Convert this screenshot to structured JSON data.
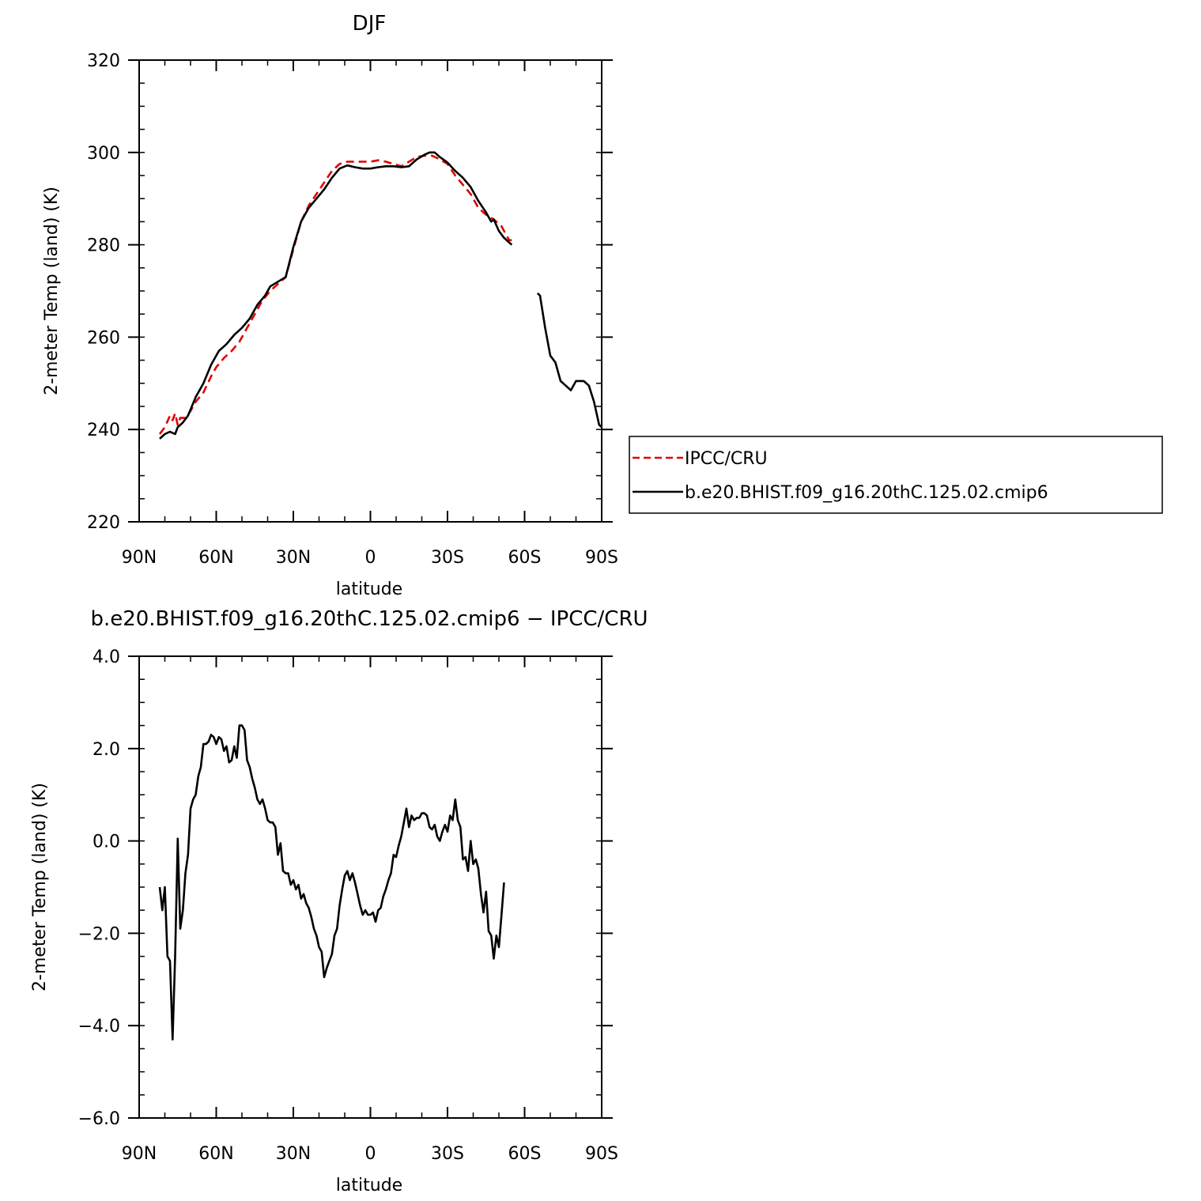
{
  "chart_data": [
    {
      "type": "line",
      "title": "DJF",
      "xlabel": "latitude",
      "ylabel": "2-meter Temp (land) (K)",
      "xlim": [
        -90,
        90
      ],
      "ylim": [
        220,
        320
      ],
      "x_ticks": [
        "90N",
        "60N",
        "30N",
        "0",
        "30S",
        "60S",
        "90S"
      ],
      "y_ticks": [
        "220",
        "240",
        "260",
        "280",
        "300",
        "320"
      ],
      "legend_position": "right",
      "series": [
        {
          "name": "IPCC/CRU",
          "color": "#e00000",
          "dash": "dashed",
          "points": [
            [
              -82,
              239
            ],
            [
              -80,
              240.5
            ],
            [
              -78,
              243
            ],
            [
              -77,
              242
            ],
            [
              -76,
              243.5
            ],
            [
              -75,
              241
            ],
            [
              -74,
              242.5
            ],
            [
              -72,
              242.5
            ],
            [
              -70,
              244
            ],
            [
              -68,
              246
            ],
            [
              -65,
              248
            ],
            [
              -62,
              251.5
            ],
            [
              -60,
              253.5
            ],
            [
              -57,
              255.5
            ],
            [
              -54,
              257
            ],
            [
              -51,
              259
            ],
            [
              -48,
              262
            ],
            [
              -45,
              265
            ],
            [
              -42,
              268
            ],
            [
              -39,
              270
            ],
            [
              -36,
              271.5
            ],
            [
              -33,
              273
            ],
            [
              -30,
              279
            ],
            [
              -27,
              285
            ],
            [
              -24,
              288.5
            ],
            [
              -21,
              291
            ],
            [
              -18,
              293.5
            ],
            [
              -15,
              296
            ],
            [
              -12,
              297.5
            ],
            [
              -9,
              298
            ],
            [
              -6,
              298
            ],
            [
              -3,
              298
            ],
            [
              0,
              298
            ],
            [
              3,
              298.3
            ],
            [
              6,
              298
            ],
            [
              9,
              297.5
            ],
            [
              12,
              297
            ],
            [
              15,
              298
            ],
            [
              18,
              299
            ],
            [
              21,
              299.3
            ],
            [
              24,
              299.3
            ],
            [
              27,
              298.5
            ],
            [
              30,
              297.5
            ],
            [
              33,
              295
            ],
            [
              36,
              293
            ],
            [
              39,
              291
            ],
            [
              42,
              288
            ],
            [
              45,
              286.5
            ],
            [
              48,
              285.5
            ],
            [
              51,
              284
            ],
            [
              54,
              281
            ],
            [
              55,
              281
            ]
          ]
        },
        {
          "name": "b.e20.BHIST.f09_g16.20thC.125.02.cmip6",
          "color": "#000000",
          "dash": "solid",
          "points": [
            [
              -82,
              238
            ],
            [
              -80,
              239
            ],
            [
              -78,
              239.5
            ],
            [
              -76,
              239
            ],
            [
              -75,
              240.5
            ],
            [
              -73,
              241.5
            ],
            [
              -71,
              243
            ],
            [
              -68,
              247
            ],
            [
              -65,
              250
            ],
            [
              -62,
              254
            ],
            [
              -59,
              257
            ],
            [
              -56,
              258.5
            ],
            [
              -53,
              260.5
            ],
            [
              -50,
              262
            ],
            [
              -47,
              264
            ],
            [
              -44,
              267
            ],
            [
              -41,
              269
            ],
            [
              -39,
              271
            ],
            [
              -36,
              272
            ],
            [
              -33,
              273
            ],
            [
              -30,
              279.5
            ],
            [
              -27,
              285
            ],
            [
              -24,
              288
            ],
            [
              -21,
              290
            ],
            [
              -18,
              292
            ],
            [
              -15,
              294.5
            ],
            [
              -12,
              296.5
            ],
            [
              -9,
              297.2
            ],
            [
              -6,
              296.8
            ],
            [
              -3,
              296.5
            ],
            [
              0,
              296.5
            ],
            [
              3,
              296.8
            ],
            [
              6,
              297
            ],
            [
              9,
              297
            ],
            [
              12,
              296.8
            ],
            [
              15,
              297
            ],
            [
              18,
              298.5
            ],
            [
              21,
              299.5
            ],
            [
              23,
              300
            ],
            [
              25,
              300
            ],
            [
              27,
              299
            ],
            [
              30,
              297.8
            ],
            [
              33,
              296
            ],
            [
              36,
              294.5
            ],
            [
              39,
              292.5
            ],
            [
              42,
              289.5
            ],
            [
              45,
              287
            ],
            [
              47,
              285
            ],
            [
              48,
              285.5
            ],
            [
              50,
              283
            ],
            [
              52,
              281.5
            ],
            [
              55,
              280
            ],
            [
              null,
              null
            ],
            [
              65,
              269.5
            ],
            [
              66,
              269
            ],
            [
              68,
              262
            ],
            [
              70,
              256
            ],
            [
              72,
              254.5
            ],
            [
              74,
              250.5
            ],
            [
              76,
              249.5
            ],
            [
              78,
              248.5
            ],
            [
              80,
              250.5
            ],
            [
              83,
              250.5
            ],
            [
              85,
              249.5
            ],
            [
              87,
              246
            ],
            [
              89,
              241
            ],
            [
              90,
              240.5
            ]
          ]
        }
      ]
    },
    {
      "type": "line",
      "title": "b.e20.BHIST.f09_g16.20thC.125.02.cmip6  −  IPCC/CRU",
      "xlabel": "latitude",
      "ylabel": "2-meter Temp (land) (K)",
      "xlim": [
        -90,
        90
      ],
      "ylim": [
        -6,
        4
      ],
      "x_ticks": [
        "90N",
        "60N",
        "30N",
        "0",
        "30S",
        "60S",
        "90S"
      ],
      "y_ticks": [
        "−6.0",
        "−4.0",
        "−2.0",
        "0.0",
        "2.0",
        "4.0"
      ],
      "series": [
        {
          "color": "#000000",
          "dash": "solid",
          "points": [
            [
              -82,
              -1
            ],
            [
              -81,
              -1.5
            ],
            [
              -80,
              -1
            ],
            [
              -79,
              -2.5
            ],
            [
              -78,
              -2.6
            ],
            [
              -77,
              -4.3
            ],
            [
              -76,
              -2.5
            ],
            [
              -75,
              0.05
            ],
            [
              -74,
              -1.9
            ],
            [
              -73,
              -1.5
            ],
            [
              -72,
              -0.7
            ],
            [
              -71,
              -0.3
            ],
            [
              -70,
              0.7
            ],
            [
              -69,
              0.9
            ],
            [
              -68,
              1
            ],
            [
              -67,
              1.4
            ],
            [
              -66,
              1.6
            ],
            [
              -65,
              2.1
            ],
            [
              -64,
              2.1
            ],
            [
              -63,
              2.15
            ],
            [
              -62,
              2.3
            ],
            [
              -61,
              2.25
            ],
            [
              -60,
              2.1
            ],
            [
              -59,
              2.25
            ],
            [
              -58,
              2.2
            ],
            [
              -57,
              1.95
            ],
            [
              -56,
              2.05
            ],
            [
              -55,
              1.7
            ],
            [
              -54,
              1.75
            ],
            [
              -53,
              2.05
            ],
            [
              -52,
              1.8
            ],
            [
              -51,
              2.5
            ],
            [
              -50,
              2.5
            ],
            [
              -49,
              2.4
            ],
            [
              -48,
              1.75
            ],
            [
              -47,
              1.6
            ],
            [
              -46,
              1.35
            ],
            [
              -45,
              1.15
            ],
            [
              -44,
              0.9
            ],
            [
              -43,
              0.8
            ],
            [
              -42,
              0.9
            ],
            [
              -41,
              0.7
            ],
            [
              -40,
              0.45
            ],
            [
              -39,
              0.4
            ],
            [
              -38,
              0.4
            ],
            [
              -37,
              0.3
            ],
            [
              -36,
              -0.3
            ],
            [
              -35,
              -0.05
            ],
            [
              -34,
              -0.65
            ],
            [
              -33,
              -0.7
            ],
            [
              -32,
              -0.7
            ],
            [
              -31,
              -0.95
            ],
            [
              -30,
              -0.85
            ],
            [
              -29,
              -1.05
            ],
            [
              -28,
              -0.95
            ],
            [
              -27,
              -1.25
            ],
            [
              -26,
              -1.15
            ],
            [
              -25,
              -1.35
            ],
            [
              -24,
              -1.45
            ],
            [
              -23,
              -1.65
            ],
            [
              -22,
              -1.9
            ],
            [
              -21,
              -2.05
            ],
            [
              -20,
              -2.3
            ],
            [
              -19,
              -2.4
            ],
            [
              -18,
              -2.95
            ],
            [
              -17,
              -2.75
            ],
            [
              -16,
              -2.6
            ],
            [
              -15,
              -2.45
            ],
            [
              -14,
              -2.05
            ],
            [
              -13,
              -1.9
            ],
            [
              -12,
              -1.4
            ],
            [
              -11,
              -1.05
            ],
            [
              -10,
              -0.75
            ],
            [
              -9,
              -0.65
            ],
            [
              -8,
              -0.85
            ],
            [
              -7,
              -0.7
            ],
            [
              -6,
              -0.9
            ],
            [
              -5,
              -1.15
            ],
            [
              -4,
              -1.4
            ],
            [
              -3,
              -1.6
            ],
            [
              -2,
              -1.5
            ],
            [
              -1,
              -1.6
            ],
            [
              0,
              -1.6
            ],
            [
              1,
              -1.55
            ],
            [
              2,
              -1.75
            ],
            [
              3,
              -1.5
            ],
            [
              4,
              -1.45
            ],
            [
              5,
              -1.2
            ],
            [
              6,
              -1.05
            ],
            [
              7,
              -0.85
            ],
            [
              8,
              -0.7
            ],
            [
              9,
              -0.3
            ],
            [
              10,
              -0.35
            ],
            [
              11,
              -0.1
            ],
            [
              12,
              0.1
            ],
            [
              13,
              0.4
            ],
            [
              14,
              0.7
            ],
            [
              15,
              0.3
            ],
            [
              16,
              0.55
            ],
            [
              17,
              0.45
            ],
            [
              18,
              0.5
            ],
            [
              19,
              0.5
            ],
            [
              20,
              0.6
            ],
            [
              21,
              0.6
            ],
            [
              22,
              0.55
            ],
            [
              23,
              0.3
            ],
            [
              24,
              0.25
            ],
            [
              25,
              0.35
            ],
            [
              26,
              0.1
            ],
            [
              27,
              0
            ],
            [
              28,
              0.2
            ],
            [
              29,
              0.35
            ],
            [
              30,
              0.2
            ],
            [
              31,
              0.55
            ],
            [
              32,
              0.45
            ],
            [
              33,
              0.9
            ],
            [
              34,
              0.45
            ],
            [
              35,
              0.3
            ],
            [
              36,
              -0.4
            ],
            [
              37,
              -0.35
            ],
            [
              38,
              -0.65
            ],
            [
              39,
              0
            ],
            [
              40,
              -0.5
            ],
            [
              41,
              -0.4
            ],
            [
              42,
              -0.6
            ],
            [
              43,
              -1.15
            ],
            [
              44,
              -1.55
            ],
            [
              45,
              -1.1
            ],
            [
              46,
              -1.95
            ],
            [
              47,
              -2.05
            ],
            [
              48,
              -2.55
            ],
            [
              49,
              -2.05
            ],
            [
              50,
              -2.3
            ],
            [
              51,
              -1.6
            ],
            [
              52,
              -0.9
            ]
          ]
        }
      ]
    }
  ],
  "legend_labels": [
    "IPCC/CRU",
    "b.e20.BHIST.f09_g16.20thC.125.02.cmip6"
  ]
}
